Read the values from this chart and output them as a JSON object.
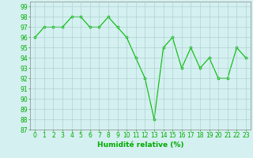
{
  "x": [
    0,
    1,
    2,
    3,
    4,
    5,
    6,
    7,
    8,
    9,
    10,
    11,
    12,
    13,
    14,
    15,
    16,
    17,
    18,
    19,
    20,
    21,
    22,
    23
  ],
  "y": [
    96,
    97,
    97,
    97,
    98,
    98,
    97,
    97,
    98,
    97,
    96,
    94,
    92,
    88,
    95,
    96,
    93,
    95,
    93,
    94,
    92,
    92,
    95,
    94
  ],
  "line_color": "#00bb00",
  "marker": "D",
  "marker_size": 1.5,
  "bg_color": "#d4f0f0",
  "grid_color": "#aacccc",
  "xlabel": "Humidité relative (%)",
  "xlabel_color": "#00aa00",
  "xlabel_fontsize": 6.5,
  "tick_color": "#00aa00",
  "tick_fontsize": 5.5,
  "ylim": [
    87,
    99.5
  ],
  "yticks": [
    87,
    88,
    89,
    90,
    91,
    92,
    93,
    94,
    95,
    96,
    97,
    98,
    99
  ],
  "xlim": [
    -0.5,
    23.5
  ],
  "xticks": [
    0,
    1,
    2,
    3,
    4,
    5,
    6,
    7,
    8,
    9,
    10,
    11,
    12,
    13,
    14,
    15,
    16,
    17,
    18,
    19,
    20,
    21,
    22,
    23
  ]
}
